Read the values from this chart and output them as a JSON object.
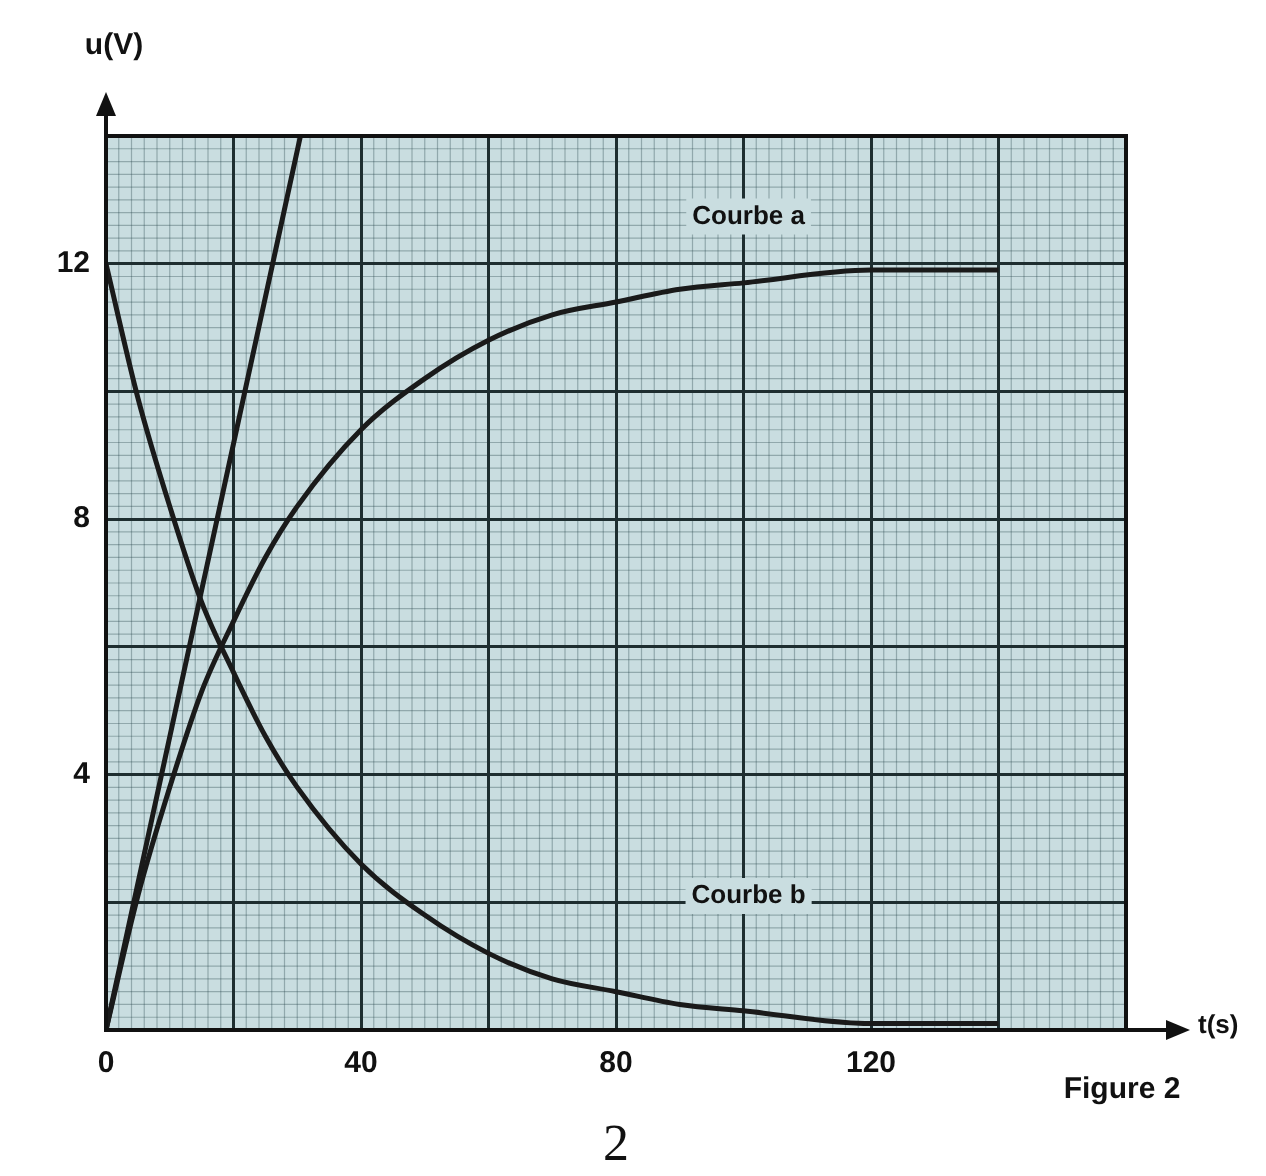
{
  "chart_data": {
    "type": "line",
    "xlabel": "t(s)",
    "ylabel": "u(V)",
    "x": [
      0,
      5,
      10,
      15,
      20,
      25,
      30,
      40,
      50,
      60,
      70,
      80,
      90,
      100,
      120,
      140
    ],
    "series": [
      {
        "color": "#1a1a1a",
        "values": [
          0,
          2.1,
          3.8,
          5.3,
          6.4,
          7.4,
          8.2,
          9.4,
          10.2,
          10.8,
          11.2,
          11.4,
          11.6,
          11.7,
          11.9,
          11.9
        ]
      },
      {
        "color": "#1a1a1a",
        "values": [
          12,
          9.9,
          8.2,
          6.7,
          5.6,
          4.6,
          3.8,
          2.6,
          1.8,
          1.2,
          0.8,
          0.6,
          0.4,
          0.3,
          0.1,
          0.1
        ]
      },
      {
        "color": "#1a1a1a",
        "x": [
          0,
          30.5
        ],
        "values": [
          0,
          14
        ]
      }
    ],
    "xlim": [
      0,
      160
    ],
    "ylim": [
      0,
      14
    ],
    "xticks": [
      0,
      {
        "value": 20,
        "label": null
      },
      40,
      {
        "value": 60,
        "label": null
      },
      80,
      {
        "value": 100,
        "label": null
      },
      120,
      {
        "value": 140,
        "label": null
      },
      {
        "value": 160,
        "label": null
      }
    ],
    "yticks": [
      {
        "value": 0,
        "label": null
      },
      {
        "value": 2,
        "label": null
      },
      4,
      {
        "value": 6,
        "label": null
      },
      8,
      {
        "value": 10,
        "label": null
      },
      12,
      {
        "value": 14,
        "label": null
      }
    ],
    "grid": true,
    "annotations": [
      "Courbe a",
      "Courbe b",
      "Figure 2",
      "2"
    ]
  }
}
